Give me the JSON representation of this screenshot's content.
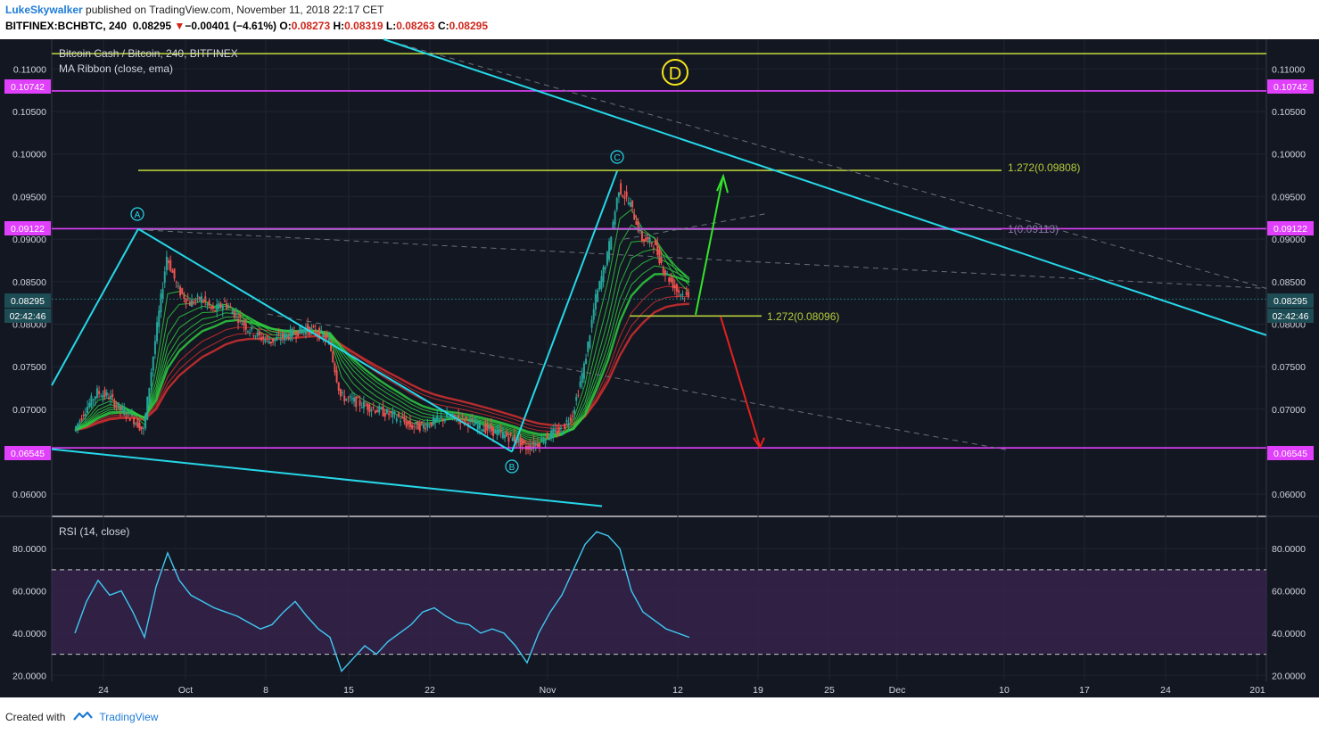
{
  "header": {
    "author": "LukeSkywalker",
    "published_text": " published on TradingView.com, November 11, 2018 22:17 CET",
    "symbol": "BITFINEX:BCHBTC, 240",
    "last": "0.08295",
    "arrow": "▼",
    "change": "−0.00401 (−4.61%)",
    "o_label": "O:",
    "o_val": "0.08273",
    "h_label": "H:",
    "h_val": "0.08319",
    "l_label": "L:",
    "l_val": "0.08263",
    "c_label": "C:",
    "c_val": "0.08295"
  },
  "legend": {
    "main_title": "Bitcoin Cash / Bitcoin, 240, BITFINEX",
    "indicator": "MA Ribbon (close, ema)",
    "rsi_title": "RSI (14, close)"
  },
  "annotations": {
    "wave_d": "D",
    "point_a": "A",
    "point_b": "B",
    "point_c": "C",
    "fib_upper": "1.272(0.09808)",
    "fib_mid": "1(0.09113)",
    "fib_lower": "1.272(0.08096)",
    "price_tag_1": "0.10742",
    "price_tag_2": "0.09122",
    "price_tag_3": "0.06545",
    "price_tag_last": "0.08295",
    "countdown": "02:42:46"
  },
  "colors": {
    "background": "#131722",
    "magenta": "#e040fb",
    "cyan": "#26d7e8",
    "olive": "#b5cc3a",
    "up": "#26a69a",
    "down": "#ef5350",
    "ribbon_green": "#2ecc40",
    "ribbon_red": "#d32f2f",
    "rsi_line": "#3fc9f2",
    "rsi_band": "#3a2450"
  },
  "footer": {
    "created_with": "Created with",
    "brand": "TradingView"
  },
  "chart_data": {
    "type": "line",
    "title": "Bitcoin Cash / Bitcoin, 240, BITFINEX",
    "y_axis_ticks": [
      "0.11000",
      "0.10500",
      "0.10000",
      "0.09500",
      "0.09000",
      "0.08500",
      "0.08000",
      "0.07500",
      "0.07000",
      "0.06000"
    ],
    "ylim": [
      0.0575,
      0.1135
    ],
    "x_ticks": [
      "24",
      "Oct",
      "8",
      "15",
      "22",
      "Nov",
      "12",
      "19",
      "25",
      "Dec",
      "10",
      "17",
      "24",
      "201"
    ],
    "series": [
      {
        "x": [
          "2018-09-19",
          "2018-09-20",
          "2018-09-21",
          "2018-09-22",
          "2018-09-23",
          "2018-09-24",
          "2018-09-25",
          "2018-09-26",
          "2018-09-27",
          "2018-09-28",
          "2018-09-29",
          "2018-09-30",
          "2018-10-01",
          "2018-10-02",
          "2018-10-03",
          "2018-10-04",
          "2018-10-05",
          "2018-10-06",
          "2018-10-07",
          "2018-10-08",
          "2018-10-09",
          "2018-10-10",
          "2018-10-11",
          "2018-10-12",
          "2018-10-13",
          "2018-10-14",
          "2018-10-15",
          "2018-10-16",
          "2018-10-17",
          "2018-10-18",
          "2018-10-19",
          "2018-10-20",
          "2018-10-21",
          "2018-10-22",
          "2018-10-23",
          "2018-10-24",
          "2018-10-25",
          "2018-10-26",
          "2018-10-27",
          "2018-10-28",
          "2018-10-29",
          "2018-10-30",
          "2018-10-31",
          "2018-11-01",
          "2018-11-02",
          "2018-11-03",
          "2018-11-04",
          "2018-11-05",
          "2018-11-06",
          "2018-11-07",
          "2018-11-08",
          "2018-11-09",
          "2018-11-10",
          "2018-11-11"
        ],
        "values": [
          0.0675,
          0.07,
          0.072,
          0.0715,
          0.07,
          0.069,
          0.0675,
          0.078,
          0.088,
          0.084,
          0.0825,
          0.083,
          0.0815,
          0.0825,
          0.081,
          0.0795,
          0.0785,
          0.078,
          0.0785,
          0.079,
          0.0795,
          0.079,
          0.078,
          0.0715,
          0.071,
          0.0705,
          0.07,
          0.0695,
          0.069,
          0.068,
          0.068,
          0.0685,
          0.069,
          0.069,
          0.0685,
          0.068,
          0.0675,
          0.067,
          0.0665,
          0.0655,
          0.066,
          0.067,
          0.0675,
          0.0695,
          0.075,
          0.083,
          0.088,
          0.096,
          0.094,
          0.09,
          0.0895,
          0.086,
          0.084,
          0.083
        ]
      }
    ],
    "levels": [
      {
        "label": "1.272(0.09808)",
        "value": 0.09808
      },
      {
        "label": "1(0.09113)",
        "value": 0.09113
      },
      {
        "label": "1.272(0.08096)",
        "value": 0.08096
      },
      {
        "label": "0.10742",
        "value": 0.10742
      },
      {
        "label": "0.09122",
        "value": 0.09122
      },
      {
        "label": "0.06545",
        "value": 0.06545
      }
    ],
    "rsi": {
      "y_axis_ticks": [
        "80.0000",
        "60.0000",
        "40.0000",
        "20.0000"
      ],
      "ylim": [
        18,
        94
      ],
      "bands": [
        30,
        70
      ],
      "values": [
        40,
        55,
        65,
        58,
        60,
        50,
        38,
        62,
        78,
        65,
        58,
        55,
        52,
        50,
        48,
        45,
        42,
        44,
        50,
        55,
        48,
        42,
        38,
        22,
        28,
        34,
        30,
        36,
        40,
        44,
        50,
        52,
        48,
        45,
        44,
        40,
        42,
        40,
        34,
        26,
        40,
        50,
        58,
        70,
        82,
        88,
        86,
        80,
        60,
        50,
        46,
        42,
        40,
        38
      ]
    }
  }
}
